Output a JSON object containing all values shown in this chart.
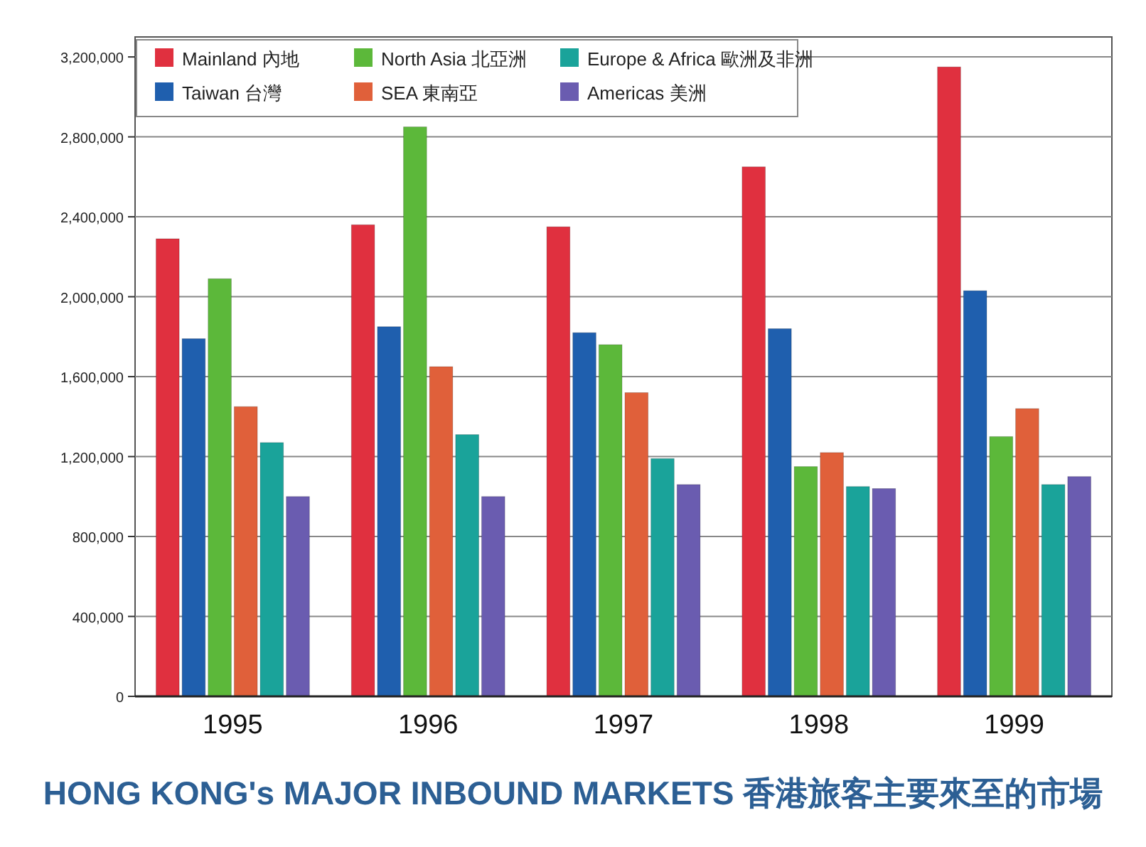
{
  "chart_data": {
    "type": "bar",
    "title": "HONG KONG's MAJOR INBOUND MARKETS 香港旅客主要來至的市場",
    "categories": [
      "1995",
      "1996",
      "1997",
      "1998",
      "1999"
    ],
    "series": [
      {
        "name": "Mainland 內地",
        "color": "#e0303f",
        "values": [
          2290000,
          2360000,
          2350000,
          2650000,
          3150000
        ]
      },
      {
        "name": "Taiwan 台灣",
        "color": "#1f5fae",
        "values": [
          1790000,
          1850000,
          1820000,
          1840000,
          2030000
        ]
      },
      {
        "name": "North Asia 北亞洲",
        "color": "#5cb83a",
        "values": [
          2090000,
          2850000,
          1760000,
          1150000,
          1300000
        ]
      },
      {
        "name": "SEA 東南亞",
        "color": "#e0603a",
        "values": [
          1450000,
          1650000,
          1520000,
          1220000,
          1440000
        ]
      },
      {
        "name": "Europe & Africa 歐洲及非洲",
        "color": "#1aa39a",
        "values": [
          1270000,
          1310000,
          1190000,
          1050000,
          1060000
        ]
      },
      {
        "name": "Americas 美洲",
        "color": "#6a5cb0",
        "values": [
          1000000,
          1000000,
          1060000,
          1040000,
          1100000
        ]
      }
    ],
    "ylim": [
      0,
      3300000
    ],
    "yticks": [
      0,
      {
        "value": 400000,
        "label": "400,000"
      },
      {
        "value": 800000,
        "label": "800,000"
      },
      {
        "value": 1200000,
        "label": "1,200,000"
      },
      {
        "value": 1600000,
        "label": "1,600,000"
      },
      {
        "value": 2000000,
        "label": "2,000,000"
      },
      {
        "value": 2400000,
        "label": "2,400,000"
      },
      {
        "value": 2800000,
        "label": "2,800,000"
      },
      {
        "value": 3200000,
        "label": "3,200,000"
      }
    ],
    "grid": "y",
    "legend": "top"
  }
}
